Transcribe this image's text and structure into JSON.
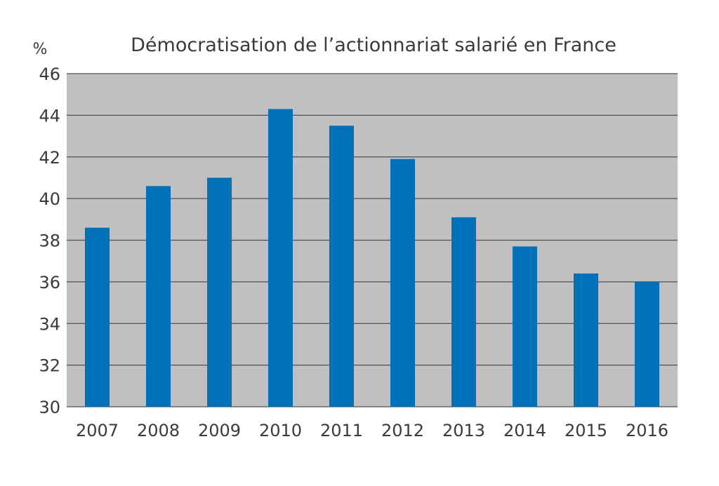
{
  "chart_data": {
    "type": "bar",
    "title": "Démocratisation de l’actionnariat salarié en France",
    "ylabel": "%",
    "xlabel": "",
    "categories": [
      "2007",
      "2008",
      "2009",
      "2010",
      "2011",
      "2012",
      "2013",
      "2014",
      "2015",
      "2016"
    ],
    "values": [
      38.6,
      40.6,
      41.0,
      44.3,
      43.5,
      41.9,
      39.1,
      37.7,
      36.4,
      36.0
    ],
    "ylim": [
      30,
      46
    ],
    "yticks": [
      "30",
      "32",
      "34",
      "36",
      "38",
      "40",
      "42",
      "44",
      "46"
    ],
    "grid": true,
    "legend": "none",
    "colors": {
      "bar": "#0070b8",
      "plot_background": "#c0c0c0",
      "grid": "#505050",
      "text": "#3a3a3a"
    }
  }
}
